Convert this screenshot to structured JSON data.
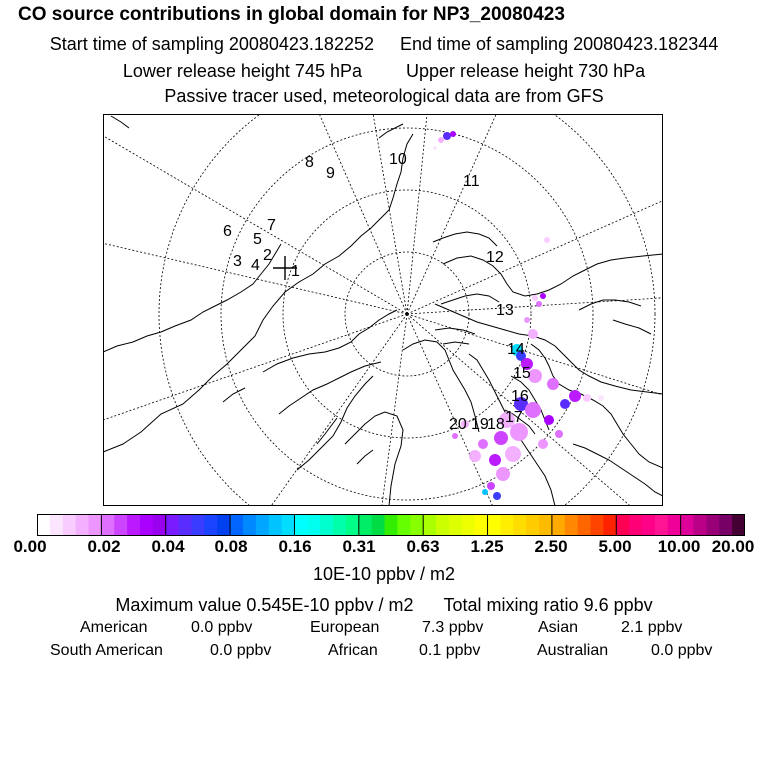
{
  "header": {
    "title": "CO  source contributions in global domain for NP3_20080423",
    "start_time": "Start time of sampling 20080423.182252",
    "end_time": "End time of sampling 20080423.182344",
    "lower_height": "Lower release height  745 hPa",
    "upper_height": "Upper release height  730 hPa",
    "tracer_note": "Passive tracer used, meteorological data are from GFS"
  },
  "map": {
    "projection": "north-polar-stereographic",
    "trajectory_points": [
      "1",
      "2",
      "3",
      "4",
      "5",
      "6",
      "7",
      "8",
      "9",
      "10",
      "11",
      "12",
      "13",
      "14",
      "15",
      "16",
      "17",
      "18",
      "19",
      "20"
    ],
    "release_marker": "+"
  },
  "colorbar": {
    "tick_labels": [
      "0.00",
      "0.02",
      "0.04",
      "0.08",
      "0.16",
      "0.31",
      "0.63",
      "1.25",
      "2.50",
      "5.00",
      "10.00",
      "20.00"
    ],
    "colors": [
      [
        "#ffffff",
        "#fce6ff",
        "#f8ccff",
        "#f3b0ff",
        "#ee96ff"
      ],
      [
        "#df70ff",
        "#cc44ff",
        "#bb1aff",
        "#aa00ff",
        "#9900ee"
      ],
      [
        "#7a1bff",
        "#5a2dff",
        "#3a3cff",
        "#1a44ff",
        "#0040ee"
      ],
      [
        "#0066ff",
        "#0088ff",
        "#00a6ff",
        "#00c4ff",
        "#00ddff"
      ],
      [
        "#00ffff",
        "#00ffee",
        "#00ffcc",
        "#00ffaa",
        "#00ff88"
      ],
      [
        "#00ee66",
        "#00dd44",
        "#33ee00",
        "#66ff00",
        "#88ff00"
      ],
      [
        "#aaff00",
        "#ccff00",
        "#ddff00",
        "#eeff00",
        "#ffff00"
      ],
      [
        "#ffff00",
        "#ffee00",
        "#ffdd00",
        "#ffcc00",
        "#ffbb00"
      ],
      [
        "#ffaa00",
        "#ff8800",
        "#ff6600",
        "#ff4400",
        "#ff2200"
      ],
      [
        "#ff0055",
        "#ff0077",
        "#ff0088",
        "#ff1493",
        "#ee0099"
      ],
      [
        "#dd0099",
        "#bb0088",
        "#990077",
        "#770066",
        "#440033"
      ]
    ],
    "units": "10E-10 ppbv / m2"
  },
  "summary": {
    "max_value": "Maximum value  0.545E-10 ppbv / m2",
    "total_mixing": "Total mixing ratio       9.6 ppbv"
  },
  "regions": [
    {
      "name": "American",
      "value": "0.0 ppbv"
    },
    {
      "name": "European",
      "value": "7.3 ppbv"
    },
    {
      "name": "Asian",
      "value": "2.1 ppbv"
    },
    {
      "name": "South American",
      "value": "0.0 ppbv"
    },
    {
      "name": "African",
      "value": "0.1 ppbv"
    },
    {
      "name": "Australian",
      "value": "0.0 ppbv"
    }
  ]
}
